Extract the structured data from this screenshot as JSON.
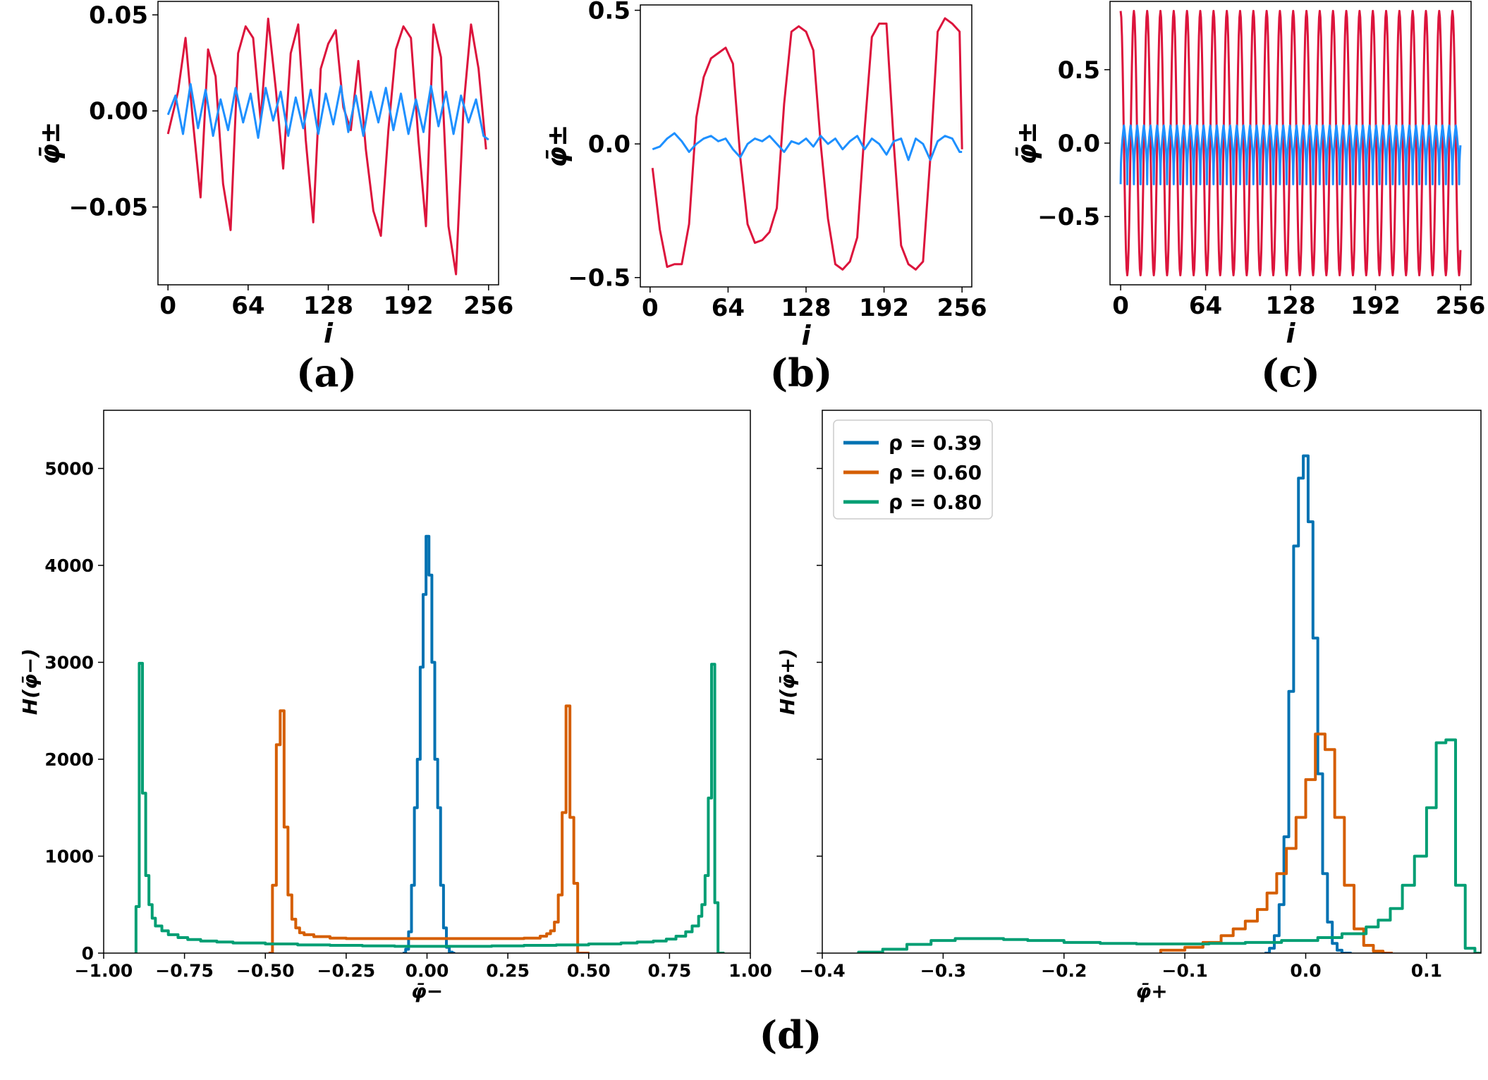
{
  "figure_title": "",
  "panel_labels": [
    "(a)",
    "(b)",
    "(c)",
    "(d)"
  ],
  "colors": {
    "minus_series": "#dc143c",
    "plus_series": "#1e90ff",
    "rho_039": "#0072b2",
    "rho_060": "#d55e00",
    "rho_080": "#009e73",
    "axis": "#000000",
    "background": "#ffffff"
  },
  "chart_data": [
    {
      "id": "a",
      "type": "line",
      "panel_label": "(a)",
      "xlabel": "i",
      "ylabel": "φ̄±",
      "xlim": [
        -8,
        264
      ],
      "ylim": [
        -0.0905,
        0.057
      ],
      "xticks": [
        0,
        64,
        128,
        192,
        256
      ],
      "xtick_labels": [
        "0",
        "64",
        "128",
        "192",
        "256"
      ],
      "yticks": [
        -0.05,
        0.0,
        0.05
      ],
      "ytick_labels": [
        "−0.05",
        "0.00",
        "0.05"
      ],
      "series": [
        {
          "name": "φ̄−",
          "color_key": "minus_series",
          "x": [
            0,
            8,
            14,
            20,
            26,
            32,
            38,
            44,
            50,
            56,
            62,
            68,
            74,
            80,
            86,
            92,
            98,
            104,
            110,
            116,
            122,
            128,
            134,
            140,
            146,
            152,
            158,
            164,
            170,
            176,
            182,
            188,
            194,
            200,
            206,
            212,
            218,
            224,
            230,
            236,
            242,
            248,
            254
          ],
          "values": [
            -0.012,
            0.01,
            0.038,
            -0.006,
            -0.045,
            0.032,
            0.018,
            -0.038,
            -0.062,
            0.03,
            0.044,
            0.038,
            -0.005,
            0.048,
            0.012,
            -0.03,
            0.03,
            0.045,
            -0.015,
            -0.058,
            0.022,
            0.035,
            0.042,
            0.002,
            -0.01,
            0.026,
            -0.02,
            -0.052,
            -0.065,
            -0.01,
            0.032,
            0.044,
            0.038,
            -0.015,
            -0.06,
            0.045,
            0.028,
            -0.06,
            -0.085,
            0.002,
            0.045,
            0.022,
            -0.02
          ]
        },
        {
          "name": "φ̄+",
          "color_key": "plus_series",
          "x": [
            0,
            6,
            12,
            18,
            24,
            30,
            36,
            42,
            48,
            54,
            60,
            66,
            72,
            78,
            84,
            90,
            96,
            102,
            108,
            114,
            120,
            126,
            132,
            138,
            144,
            150,
            156,
            162,
            168,
            174,
            180,
            186,
            192,
            198,
            204,
            210,
            216,
            222,
            228,
            234,
            240,
            246,
            252,
            256
          ],
          "values": [
            -0.002,
            0.008,
            -0.012,
            0.014,
            -0.009,
            0.011,
            -0.013,
            0.006,
            -0.01,
            0.012,
            -0.006,
            0.009,
            -0.014,
            0.012,
            -0.005,
            0.01,
            -0.013,
            0.007,
            -0.009,
            0.011,
            -0.012,
            0.009,
            -0.007,
            0.013,
            -0.011,
            0.008,
            -0.013,
            0.01,
            -0.006,
            0.012,
            -0.01,
            0.009,
            -0.012,
            0.006,
            -0.011,
            0.013,
            -0.008,
            0.01,
            -0.012,
            0.008,
            -0.006,
            0.006,
            -0.013,
            -0.015
          ]
        }
      ]
    },
    {
      "id": "b",
      "type": "line",
      "panel_label": "(b)",
      "xlabel": "i",
      "ylabel": "φ̄±",
      "xlim": [
        -8,
        264
      ],
      "ylim": [
        -0.535,
        0.52
      ],
      "xticks": [
        0,
        64,
        128,
        192,
        256
      ],
      "xtick_labels": [
        "0",
        "64",
        "128",
        "192",
        "256"
      ],
      "yticks": [
        -0.5,
        0.0,
        0.5
      ],
      "ytick_labels": [
        "−0.5",
        "0.0",
        "0.5"
      ],
      "series": [
        {
          "name": "φ̄−",
          "color_key": "minus_series",
          "x": [
            2,
            8,
            14,
            20,
            26,
            32,
            38,
            44,
            50,
            56,
            62,
            68,
            74,
            80,
            86,
            92,
            98,
            104,
            110,
            116,
            122,
            128,
            134,
            140,
            146,
            152,
            158,
            164,
            170,
            176,
            182,
            188,
            194,
            200,
            206,
            212,
            218,
            224,
            230,
            236,
            242,
            248,
            254,
            256
          ],
          "values": [
            -0.09,
            -0.32,
            -0.46,
            -0.45,
            -0.45,
            -0.3,
            0.1,
            0.25,
            0.32,
            0.34,
            0.36,
            0.3,
            -0.05,
            -0.3,
            -0.37,
            -0.36,
            -0.33,
            -0.24,
            0.15,
            0.42,
            0.44,
            0.42,
            0.35,
            0.0,
            -0.28,
            -0.45,
            -0.47,
            -0.44,
            -0.35,
            0.05,
            0.4,
            0.45,
            0.45,
            0.0,
            -0.38,
            -0.45,
            -0.47,
            -0.44,
            -0.05,
            0.42,
            0.47,
            0.45,
            0.42,
            -0.02
          ]
        },
        {
          "name": "φ̄+",
          "color_key": "plus_series",
          "x": [
            2,
            8,
            14,
            20,
            26,
            32,
            38,
            44,
            50,
            56,
            62,
            68,
            74,
            80,
            86,
            92,
            98,
            104,
            110,
            116,
            122,
            128,
            134,
            140,
            146,
            152,
            158,
            164,
            170,
            176,
            182,
            188,
            194,
            200,
            206,
            212,
            218,
            224,
            230,
            236,
            242,
            248,
            254,
            256
          ],
          "values": [
            -0.02,
            -0.01,
            0.02,
            0.04,
            0.01,
            -0.03,
            0.0,
            0.02,
            0.03,
            0.01,
            0.02,
            -0.02,
            -0.05,
            0.0,
            0.02,
            0.01,
            0.03,
            0.0,
            -0.03,
            0.01,
            0.0,
            0.02,
            -0.01,
            0.03,
            0.0,
            0.02,
            -0.02,
            0.01,
            0.03,
            -0.02,
            0.02,
            0.0,
            -0.04,
            0.01,
            0.02,
            -0.06,
            0.02,
            0.0,
            -0.06,
            0.01,
            0.03,
            0.02,
            -0.03,
            -0.03
          ]
        }
      ]
    },
    {
      "id": "c",
      "type": "line",
      "panel_label": "(c)",
      "xlabel": "i",
      "ylabel": "φ̄±",
      "xlim": [
        -8,
        264
      ],
      "ylim": [
        -0.965,
        0.965
      ],
      "xticks": [
        0,
        64,
        128,
        192,
        256
      ],
      "xtick_labels": [
        "0",
        "64",
        "128",
        "192",
        "256"
      ],
      "yticks": [
        -0.5,
        0.0,
        0.5
      ],
      "ytick_labels": [
        "−0.5",
        "0.0",
        "0.5"
      ],
      "series": [
        {
          "name": "φ̄−",
          "color_key": "minus_series",
          "function": "cosine",
          "amplitude": 0.9,
          "period": 10.0,
          "x_range": [
            0,
            256
          ]
        },
        {
          "name": "φ̄+",
          "color_key": "plus_series",
          "function": "cusp",
          "top": 0.12,
          "bottom": -0.28,
          "period": 5.0,
          "x_range": [
            0,
            256
          ]
        }
      ]
    },
    {
      "id": "d-left",
      "type": "histogram-step",
      "panel_label": "(d)",
      "xlabel": "φ̄−",
      "ylabel": "H(φ̄−)",
      "xlim": [
        -1.0,
        1.0
      ],
      "ylim": [
        0,
        5600
      ],
      "xticks": [
        -1.0,
        -0.75,
        -0.5,
        -0.25,
        0.0,
        0.25,
        0.5,
        0.75,
        1.0
      ],
      "xtick_labels": [
        "−1.00",
        "−0.75",
        "−0.50",
        "−0.25",
        "0.00",
        "0.25",
        "0.50",
        "0.75",
        "1.00"
      ],
      "yticks": [
        0,
        1000,
        2000,
        3000,
        4000,
        5000
      ],
      "ytick_labels": [
        "0",
        "1000",
        "2000",
        "3000",
        "4000",
        "5000"
      ],
      "series": [
        {
          "name": "ρ = 0.39",
          "color_key": "rho_039",
          "x": [
            -0.075,
            -0.066,
            -0.057,
            -0.048,
            -0.039,
            -0.03,
            -0.021,
            -0.012,
            -0.003,
            0.006,
            0.015,
            0.024,
            0.033,
            0.042,
            0.051,
            0.06,
            0.069,
            0.078
          ],
          "values": [
            0,
            40,
            220,
            700,
            1500,
            2000,
            2950,
            3700,
            4300,
            3900,
            3000,
            2000,
            1500,
            700,
            260,
            60,
            10,
            0
          ]
        },
        {
          "name": "ρ = 0.60",
          "color_key": "rho_060",
          "x": [
            -0.49,
            -0.478,
            -0.466,
            -0.454,
            -0.442,
            -0.43,
            -0.418,
            -0.406,
            -0.394,
            -0.38,
            -0.35,
            -0.3,
            -0.25,
            -0.2,
            -0.15,
            -0.1,
            -0.05,
            0.0,
            0.05,
            0.1,
            0.15,
            0.2,
            0.25,
            0.3,
            0.35,
            0.37,
            0.382,
            0.394,
            0.406,
            0.418,
            0.43,
            0.442,
            0.454,
            0.466,
            0.478,
            0.49
          ],
          "values": [
            0,
            700,
            2150,
            2500,
            1300,
            600,
            350,
            260,
            210,
            190,
            170,
            155,
            150,
            150,
            150,
            150,
            150,
            150,
            150,
            150,
            150,
            150,
            150,
            155,
            175,
            200,
            230,
            320,
            600,
            1450,
            2550,
            1400,
            720,
            0,
            0,
            0
          ]
        },
        {
          "name": "ρ = 0.80",
          "color_key": "rho_080",
          "x": [
            -0.9,
            -0.89,
            -0.88,
            -0.87,
            -0.86,
            -0.85,
            -0.84,
            -0.82,
            -0.8,
            -0.77,
            -0.74,
            -0.7,
            -0.65,
            -0.6,
            -0.5,
            -0.4,
            -0.3,
            -0.2,
            -0.1,
            0.0,
            0.1,
            0.2,
            0.3,
            0.4,
            0.5,
            0.6,
            0.65,
            0.7,
            0.74,
            0.77,
            0.8,
            0.82,
            0.84,
            0.85,
            0.86,
            0.87,
            0.88,
            0.89,
            0.9,
            0.91
          ],
          "values": [
            480,
            2990,
            1650,
            800,
            500,
            360,
            280,
            230,
            190,
            160,
            140,
            125,
            115,
            105,
            95,
            85,
            80,
            75,
            70,
            70,
            70,
            75,
            80,
            85,
            95,
            105,
            115,
            125,
            145,
            175,
            220,
            280,
            380,
            500,
            800,
            1600,
            2980,
            520,
            0,
            0
          ]
        }
      ]
    },
    {
      "id": "d-right",
      "type": "histogram-step",
      "panel_label": "(d)",
      "xlabel": "φ̄+",
      "ylabel": "H(φ̄+)",
      "xlim": [
        -0.4,
        0.145
      ],
      "ylim": [
        0,
        5600
      ],
      "xticks": [
        -0.4,
        -0.3,
        -0.2,
        -0.1,
        0.0,
        0.1
      ],
      "xtick_labels": [
        "−0.4",
        "−0.3",
        "−0.2",
        "−0.1",
        "0.0",
        "0.1"
      ],
      "legend": {
        "location": "top-left",
        "entries": [
          "ρ = 0.39",
          "ρ = 0.60",
          "ρ = 0.80"
        ]
      },
      "series": [
        {
          "name": "ρ = 0.39",
          "color_key": "rho_039",
          "x": [
            -0.034,
            -0.03,
            -0.026,
            -0.022,
            -0.018,
            -0.014,
            -0.01,
            -0.006,
            -0.002,
            0.002,
            0.006,
            0.01,
            0.014,
            0.018,
            0.022,
            0.026,
            0.03,
            0.034
          ],
          "values": [
            0,
            50,
            180,
            500,
            1200,
            2700,
            4200,
            4900,
            5130,
            4450,
            3250,
            1850,
            820,
            320,
            100,
            30,
            0,
            0
          ]
        },
        {
          "name": "ρ = 0.60",
          "color_key": "rho_060",
          "x": [
            -0.12,
            -0.1,
            -0.085,
            -0.07,
            -0.06,
            -0.05,
            -0.04,
            -0.032,
            -0.024,
            -0.016,
            -0.008,
            0.0,
            0.008,
            0.016,
            0.024,
            0.032,
            0.04,
            0.048,
            0.056,
            0.064
          ],
          "values": [
            30,
            60,
            110,
            180,
            250,
            330,
            450,
            620,
            820,
            1080,
            1400,
            1790,
            2260,
            2100,
            1400,
            700,
            250,
            80,
            20,
            0
          ]
        },
        {
          "name": "ρ = 0.80",
          "color_key": "rho_080",
          "x": [
            -0.37,
            -0.35,
            -0.33,
            -0.31,
            -0.29,
            -0.27,
            -0.25,
            -0.23,
            -0.2,
            -0.17,
            -0.14,
            -0.11,
            -0.08,
            -0.05,
            -0.02,
            0.01,
            0.03,
            0.05,
            0.06,
            0.07,
            0.08,
            0.09,
            0.1,
            0.108,
            0.116,
            0.124,
            0.132,
            0.14
          ],
          "values": [
            10,
            40,
            90,
            130,
            150,
            150,
            140,
            130,
            110,
            100,
            95,
            95,
            100,
            110,
            130,
            160,
            200,
            270,
            340,
            460,
            700,
            1000,
            1500,
            2170,
            2200,
            700,
            50,
            0
          ]
        }
      ]
    }
  ]
}
